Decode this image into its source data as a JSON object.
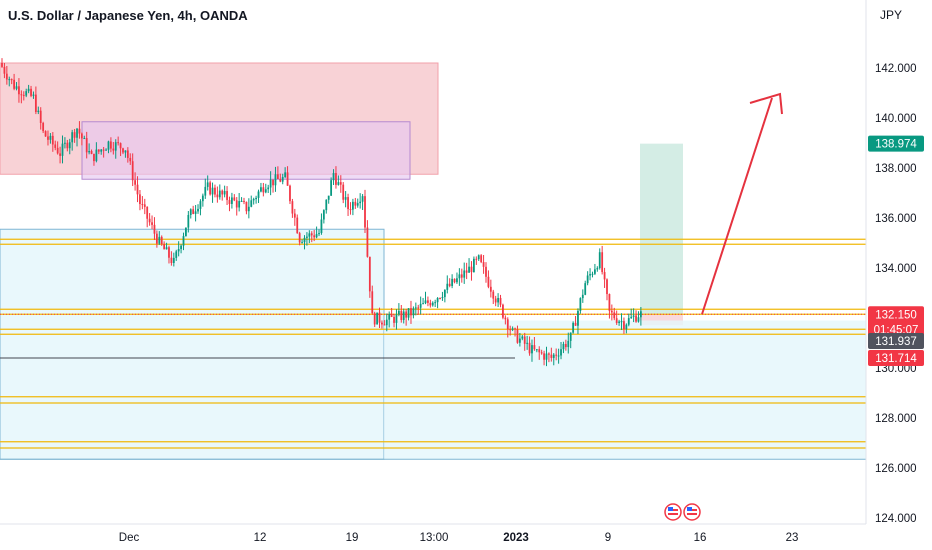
{
  "header": {
    "title": "U.S. Dollar / Japanese Yen, 4h, OANDA",
    "currency": "JPY"
  },
  "chart_data": {
    "type": "candlestick",
    "title": "U.S. Dollar / Japanese Yen, 4h, OANDA",
    "y_unit": "JPY",
    "ylim": [
      123.6,
      145.0
    ],
    "y_ticks": [
      "142.000",
      "140.000",
      "138.000",
      "136.000",
      "134.000",
      "132.000",
      "130.000",
      "128.000",
      "126.000",
      "124.000"
    ],
    "y_tick_values": [
      142,
      140,
      138,
      136,
      134,
      132,
      130,
      128,
      126,
      124
    ],
    "x_ticks": [
      "Dec",
      "12",
      "19",
      "13:00",
      "2023",
      "9",
      "16",
      "23"
    ],
    "price_path": [
      {
        "bar": 0,
        "price": 142.2
      },
      {
        "bar": 6,
        "price": 141.3
      },
      {
        "bar": 14,
        "price": 140.8
      },
      {
        "bar": 18,
        "price": 139.4
      },
      {
        "bar": 25,
        "price": 138.6
      },
      {
        "bar": 32,
        "price": 139.6
      },
      {
        "bar": 38,
        "price": 138.4
      },
      {
        "bar": 45,
        "price": 139.0
      },
      {
        "bar": 52,
        "price": 138.8
      },
      {
        "bar": 58,
        "price": 136.6
      },
      {
        "bar": 66,
        "price": 135.0
      },
      {
        "bar": 72,
        "price": 134.2
      },
      {
        "bar": 78,
        "price": 136.0
      },
      {
        "bar": 86,
        "price": 137.2
      },
      {
        "bar": 94,
        "price": 136.8
      },
      {
        "bar": 102,
        "price": 136.4
      },
      {
        "bar": 110,
        "price": 137.4
      },
      {
        "bar": 118,
        "price": 137.6
      },
      {
        "bar": 124,
        "price": 135.2
      },
      {
        "bar": 132,
        "price": 135.4
      },
      {
        "bar": 138,
        "price": 137.8
      },
      {
        "bar": 144,
        "price": 136.4
      },
      {
        "bar": 150,
        "price": 137.0
      },
      {
        "bar": 154,
        "price": 132.0
      },
      {
        "bar": 160,
        "price": 131.9
      },
      {
        "bar": 170,
        "price": 132.2
      },
      {
        "bar": 180,
        "price": 132.8
      },
      {
        "bar": 190,
        "price": 133.6
      },
      {
        "bar": 198,
        "price": 134.3
      },
      {
        "bar": 206,
        "price": 132.6
      },
      {
        "bar": 212,
        "price": 131.4
      },
      {
        "bar": 220,
        "price": 130.7
      },
      {
        "bar": 228,
        "price": 130.4
      },
      {
        "bar": 236,
        "price": 131.2
      },
      {
        "bar": 242,
        "price": 133.4
      },
      {
        "bar": 248,
        "price": 134.4
      },
      {
        "bar": 252,
        "price": 132.2
      },
      {
        "bar": 258,
        "price": 131.8
      },
      {
        "bar": 264,
        "price": 132.15
      }
    ],
    "current_price": "132.150",
    "countdown": "01:45:07",
    "price_badges": [
      {
        "label": "138.974",
        "value": 138.974,
        "color": "#089981"
      },
      {
        "label": "131.937",
        "value": 131.937,
        "color": "#50535e"
      },
      {
        "label": "131.714",
        "value": 131.714,
        "color": "#f23645"
      }
    ],
    "horizontal_levels": [
      135.15,
      134.95,
      132.35,
      132.15,
      131.55,
      131.35,
      128.85,
      128.6,
      127.05,
      126.8
    ],
    "level_color": "#f0b90b",
    "zones": [
      {
        "name": "supply-zone",
        "top": 142.2,
        "bottom": 137.75,
        "color": "#f6c7cc"
      },
      {
        "name": "inner-zone",
        "top": 139.85,
        "bottom": 137.55,
        "color": "#e6c8ef"
      },
      {
        "name": "demand-zone",
        "top": 135.55,
        "bottom": 126.35,
        "color": "#e3f6fb"
      },
      {
        "name": "long-target",
        "top": 138.974,
        "bottom": 132.15,
        "color": "#c9e9de"
      },
      {
        "name": "long-stop",
        "top": 132.15,
        "bottom": 131.714,
        "color": "#f8d0d4"
      }
    ],
    "projection": {
      "from": 132.15,
      "to": 140.8,
      "color": "#e5323f"
    },
    "colors": {
      "up": "#089981",
      "down": "#f23645",
      "axis_bg": "#ffffff",
      "grid": "#f0f3fa"
    }
  }
}
